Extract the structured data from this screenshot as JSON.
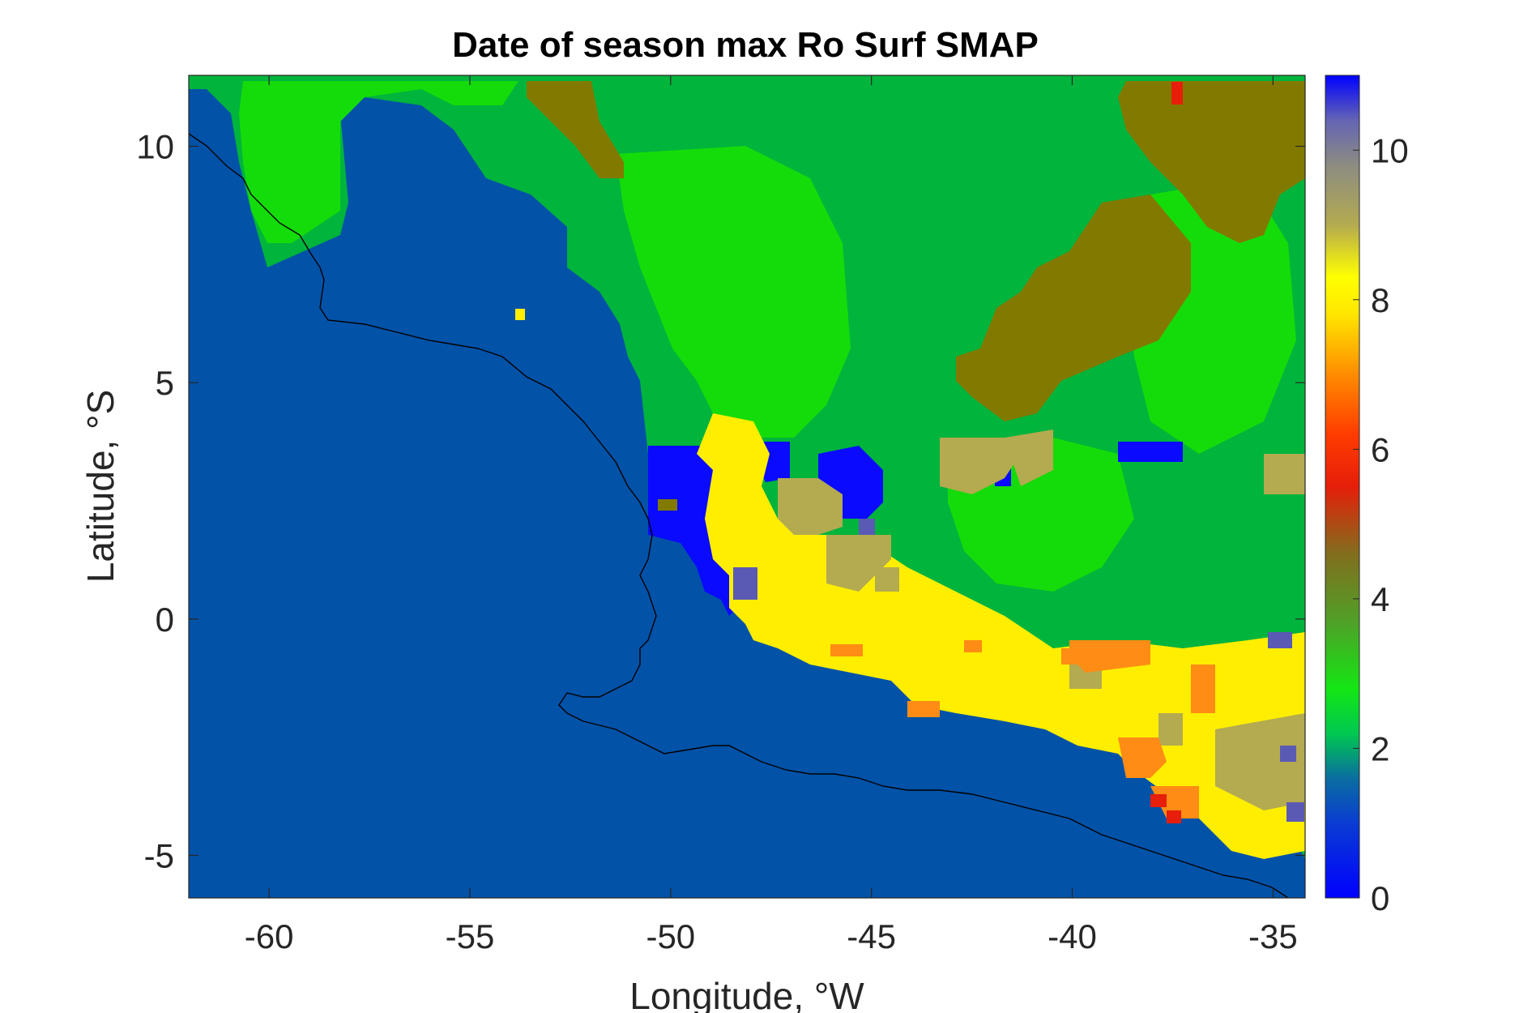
{
  "chart_data": {
    "type": "heatmap",
    "title": "Date of season max Ro Surf SMAP",
    "xlabel": "Longitude, °W",
    "ylabel": "Latitude, °S",
    "xlim": [
      -62,
      -34.2
    ],
    "ylim": [
      -5.9,
      11.5
    ],
    "x_ticks": [
      -60,
      -55,
      -50,
      -45,
      -40,
      -35
    ],
    "y_ticks": [
      -5,
      0,
      5,
      10
    ],
    "colorbar": {
      "range": [
        0,
        11
      ],
      "ticks": [
        0,
        2,
        4,
        6,
        8,
        10
      ],
      "stops": [
        {
          "v": 0,
          "color": "#0000ff"
        },
        {
          "v": 1,
          "color": "#0a3cd2"
        },
        {
          "v": 1.6,
          "color": "#0a6ea0"
        },
        {
          "v": 2.2,
          "color": "#00c850"
        },
        {
          "v": 2.8,
          "color": "#14e614"
        },
        {
          "v": 3.7,
          "color": "#50a028"
        },
        {
          "v": 4.6,
          "color": "#826e1e"
        },
        {
          "v": 5.5,
          "color": "#e61e0a"
        },
        {
          "v": 6.2,
          "color": "#ff3c00"
        },
        {
          "v": 7.0,
          "color": "#ff8c00"
        },
        {
          "v": 7.8,
          "color": "#ffe600"
        },
        {
          "v": 8.3,
          "color": "#ffff00"
        },
        {
          "v": 9.0,
          "color": "#b4aa50"
        },
        {
          "v": 9.8,
          "color": "#8c8c82"
        },
        {
          "v": 10.4,
          "color": "#6464b4"
        },
        {
          "v": 11,
          "color": "#0000ff"
        }
      ]
    },
    "regions": [
      {
        "label": "Atlantic Ocean / background",
        "value": 0.9,
        "color": "#0252a8"
      },
      {
        "label": "North green region",
        "value": 2.2,
        "color": "#00b43c"
      },
      {
        "label": "Light green region",
        "value": 2.8,
        "color": "#14dc0a"
      },
      {
        "label": "Olive region (upper right)",
        "value": 4.3,
        "color": "#827a00"
      },
      {
        "label": "Blue patches",
        "value": 0.1,
        "color": "#0a0aff"
      },
      {
        "label": "Yellow band",
        "value": 8.2,
        "color": "#ffee00"
      },
      {
        "label": "Khaki patches",
        "value": 9.0,
        "color": "#b4aa50"
      },
      {
        "label": "Orange edge cells",
        "value": 7.0,
        "color": "#ff8c14"
      },
      {
        "label": "Red cells",
        "value": 5.5,
        "color": "#e61e0a"
      },
      {
        "label": "Blue-grey cells",
        "value": 10.2,
        "color": "#5a5ab4"
      }
    ],
    "grid": false,
    "colors": {
      "ocean": "#0252a8",
      "green": "#00b43c",
      "light_green": "#14dc0a",
      "olive": "#827a00",
      "blue": "#0a0aff",
      "yellow": "#ffee00",
      "khaki": "#b4aa50",
      "orange": "#ff8c14",
      "red": "#e61e0a",
      "bluegrey": "#5a5ab4",
      "coastline": "#000000"
    }
  }
}
